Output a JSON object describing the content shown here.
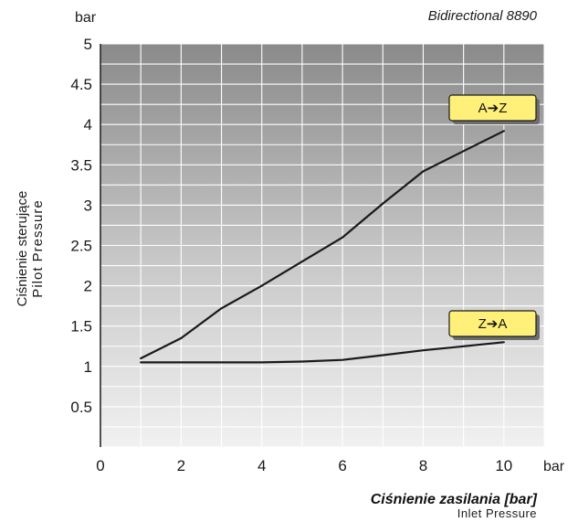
{
  "header": {
    "model": "Bidirectional  8890"
  },
  "chart_data": {
    "type": "line",
    "title": "",
    "xlabel": "Ciśnienie zasilania [bar]",
    "xlabel_sub": "Inlet Pressure",
    "ylabel": "Ciśnienie sterujące",
    "ylabel_sub": "Pilot Pressure",
    "y_unit": "bar",
    "x_unit": "bar",
    "xlim": [
      0,
      11
    ],
    "ylim": [
      0,
      5
    ],
    "x_ticks": [
      0,
      2,
      4,
      6,
      8,
      10
    ],
    "x_tick_labels": [
      "0",
      "2",
      "4",
      "6",
      "8",
      "10"
    ],
    "y_ticks": [
      0.5,
      1,
      1.5,
      2,
      2.5,
      3,
      3.5,
      4,
      4.5,
      5
    ],
    "y_tick_labels": [
      "0.5",
      "1",
      "1.5",
      "2",
      "2.5",
      "3",
      "3.5",
      "4",
      "4.5",
      "5"
    ],
    "grid": true,
    "grid_x_step": 1,
    "grid_y_step": 0.25,
    "series": [
      {
        "name": "A➔Z",
        "legend_placement": "upper-right",
        "x": [
          1,
          2,
          3,
          4,
          5,
          6,
          7,
          8,
          9,
          10
        ],
        "y": [
          1.1,
          1.35,
          1.72,
          2.0,
          2.3,
          2.6,
          3.02,
          3.42,
          3.67,
          3.92
        ]
      },
      {
        "name": "Z➔A",
        "legend_placement": "lower-right",
        "x": [
          1,
          2,
          3,
          4,
          5,
          6,
          7,
          8,
          9,
          10
        ],
        "y": [
          1.05,
          1.05,
          1.05,
          1.05,
          1.06,
          1.08,
          1.14,
          1.2,
          1.25,
          1.3
        ]
      }
    ],
    "colors": {
      "plot_bg_top": "#8a8a8a",
      "plot_bg_bottom": "#f1f1f1",
      "grid": "#ffffff",
      "line": "#1a1a1a",
      "legend_fill": "#fff07a"
    }
  }
}
